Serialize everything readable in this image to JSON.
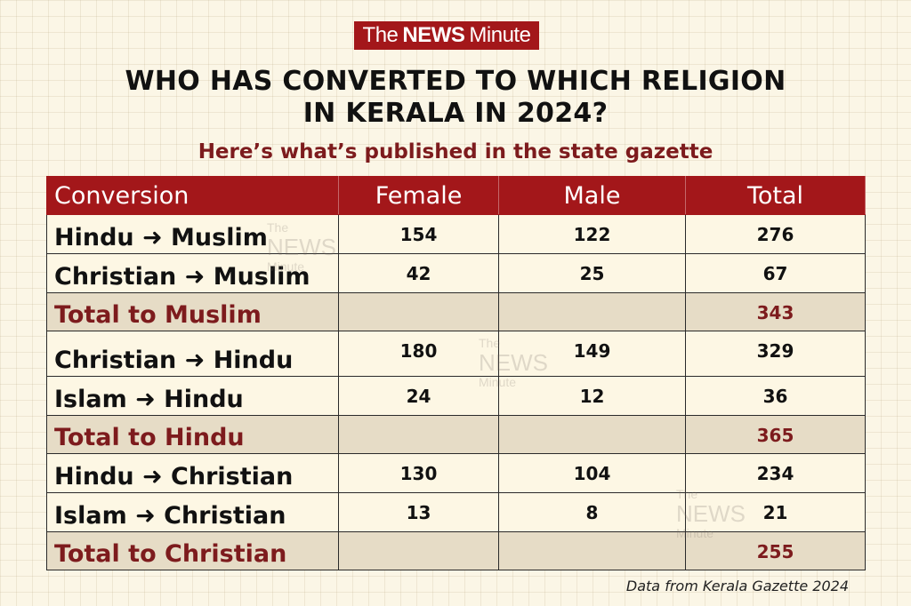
{
  "brand": {
    "pre": "The",
    "bold": "NEWS",
    "post": "Minute"
  },
  "title": {
    "line1": "WHO HAS CONVERTED TO WHICH RELIGION",
    "line2": "IN KERALA IN 2024?"
  },
  "subtitle": "Here’s what’s published in the state gazette",
  "colors": {
    "header_bg": "#a3171a",
    "accent_text": "#7d1b1d",
    "row_bg": "#fdf7e4",
    "total_row_bg": "#e6dcc6"
  },
  "chart_data": {
    "type": "table",
    "title": "WHO HAS CONVERTED TO WHICH RELIGION IN KERALA IN 2024?",
    "subtitle": "Here’s what’s published in the state gazette",
    "columns": [
      "Conversion",
      "Female",
      "Male",
      "Total"
    ],
    "rows": [
      {
        "label": "Hindu ➜ Muslim",
        "female": "154",
        "male": "122",
        "total": "276",
        "is_total": false
      },
      {
        "label": "Christian ➜ Muslim",
        "female": "42",
        "male": "25",
        "total": "67",
        "is_total": false
      },
      {
        "label": "Total to Muslim",
        "female": "",
        "male": "",
        "total": "343",
        "is_total": true
      },
      {
        "label": "Christian ➜ Hindu",
        "female": "180",
        "male": "149",
        "total": "329",
        "is_total": false
      },
      {
        "label": "Islam ➜ Hindu",
        "female": "24",
        "male": "12",
        "total": "36",
        "is_total": false
      },
      {
        "label": "Total to Hindu",
        "female": "",
        "male": "",
        "total": "365",
        "is_total": true
      },
      {
        "label": "Hindu ➜ Christian",
        "female": "130",
        "male": "104",
        "total": "234",
        "is_total": false
      },
      {
        "label": "Islam ➜ Christian",
        "female": "13",
        "male": "8",
        "total": "21",
        "is_total": false
      },
      {
        "label": "Total to Christian",
        "female": "",
        "male": "",
        "total": "255",
        "is_total": true
      }
    ]
  },
  "source": "Data from Kerala Gazette 2024"
}
